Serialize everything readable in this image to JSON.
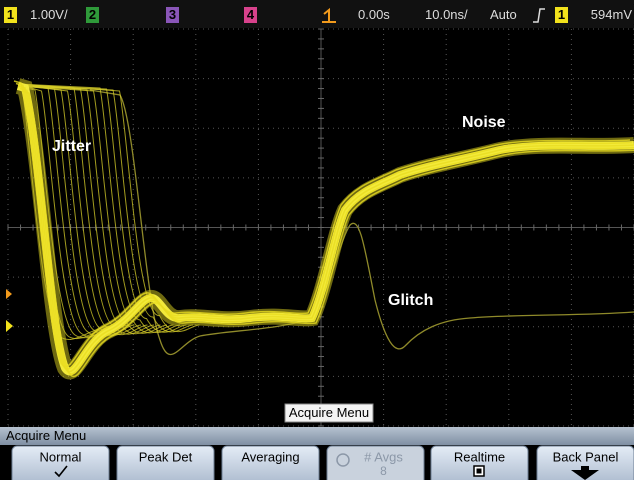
{
  "status_bar": {
    "ch1": "1",
    "ch1_scale": "1.00V/",
    "ch2": "2",
    "ch3": "3",
    "ch4": "4",
    "time_offset": "0.00s",
    "time_scale": "10.0ns/",
    "trigger_mode": "Auto",
    "trigger_source": "1",
    "trigger_level": "594mV"
  },
  "screen": {
    "labels": [
      "Jitter",
      "Noise",
      "Glitch"
    ],
    "menu_label": "Acquire Menu"
  },
  "menu": {
    "title": "Acquire Menu",
    "buttons": [
      {
        "label": "Normal"
      },
      {
        "label": "Peak Det"
      },
      {
        "label": "Averaging"
      },
      {
        "label": "# Avgs",
        "value": "8"
      },
      {
        "label": "Realtime"
      },
      {
        "label": "Back Panel"
      }
    ]
  }
}
